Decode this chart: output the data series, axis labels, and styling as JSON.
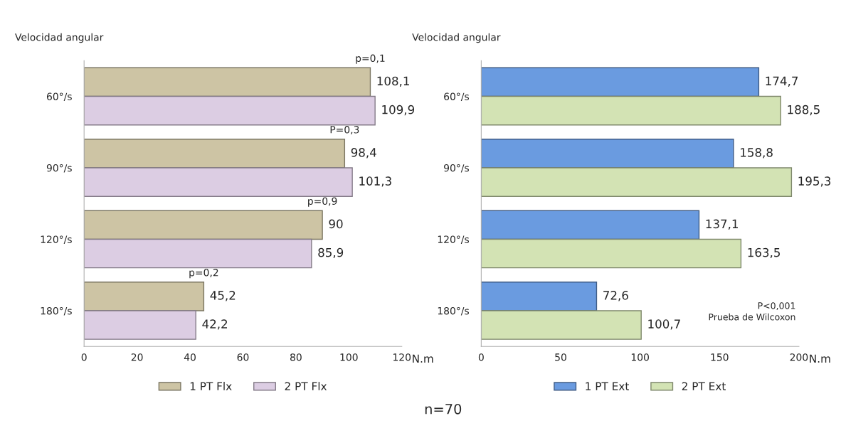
{
  "chart_data": [
    {
      "type": "bar",
      "orientation": "horizontal",
      "ylabel": "Velocidad angular",
      "xlabel": "N.m",
      "categories": [
        "60°/s",
        "90°/s",
        "120°/s",
        "180°/s"
      ],
      "series": [
        {
          "name": "1 PT Flx",
          "color": "#cdc4a4",
          "values": [
            108.1,
            98.4,
            90,
            45.2
          ],
          "value_labels": [
            "108,1",
            "98,4",
            "90",
            "45,2"
          ]
        },
        {
          "name": "2 PT Flx",
          "color": "#dccde3",
          "values": [
            109.9,
            101.3,
            85.9,
            42.2
          ],
          "value_labels": [
            "109,9",
            "101,3",
            "85,9",
            "42,2"
          ]
        }
      ],
      "xlim": [
        0,
        120
      ],
      "xticks": [
        0,
        20,
        40,
        60,
        80,
        100,
        120
      ],
      "legend": "bottom",
      "grid": false,
      "annotations": [
        "p=0,1",
        "P=0,3",
        "p=0,9",
        "p=0,2"
      ]
    },
    {
      "type": "bar",
      "orientation": "horizontal",
      "ylabel": "Velocidad angular",
      "xlabel": "N.m",
      "categories": [
        "60°/s",
        "90°/s",
        "120°/s",
        "180°/s"
      ],
      "series": [
        {
          "name": "1 PT Ext",
          "color": "#6a9be0",
          "values": [
            174.7,
            158.8,
            137.1,
            72.6
          ],
          "value_labels": [
            "174,7",
            "158,8",
            "137,1",
            "72,6"
          ]
        },
        {
          "name": "2 PT Ext",
          "color": "#d3e3b4",
          "values": [
            188.5,
            195.3,
            163.5,
            100.7
          ],
          "value_labels": [
            "188,5",
            "195,3",
            "163,5",
            "100,7"
          ]
        }
      ],
      "xlim": [
        0,
        200
      ],
      "xticks": [
        0,
        50,
        100,
        150,
        200
      ],
      "legend": "bottom",
      "grid": false,
      "annotations": [
        "P<0,001\nPrueba de Wilcoxon",
        "n=70"
      ]
    }
  ]
}
